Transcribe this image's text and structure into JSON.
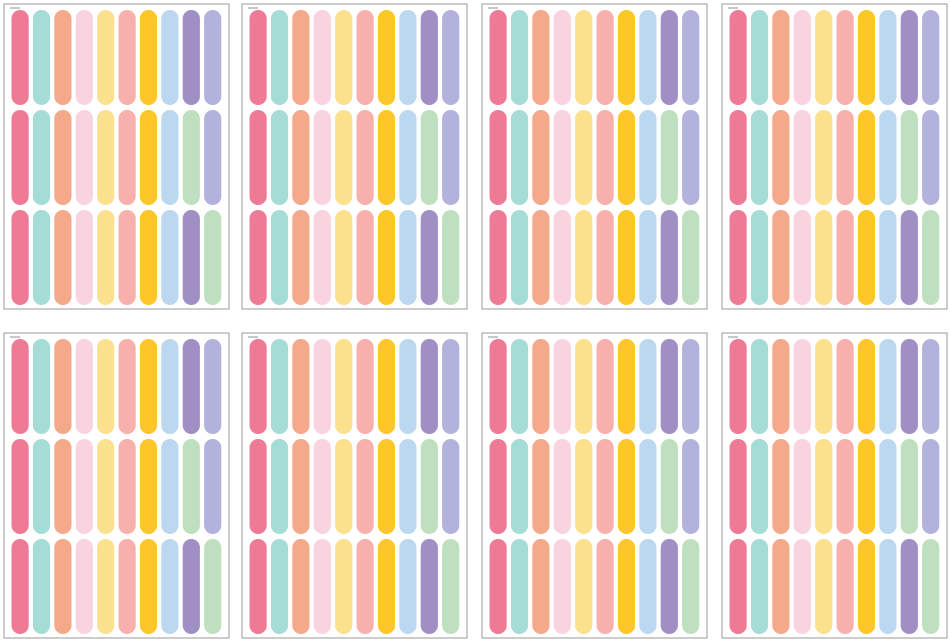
{
  "palette": [
    "#ee7a96",
    "#a5dcd6",
    "#f4a98a",
    "#f9d3e0",
    "#fbe08e",
    "#f7b0ab",
    "#fdc72a",
    "#bcd8f0",
    "#9f8fc4",
    "#b2b2dc",
    "#bfe0bf"
  ]
}
